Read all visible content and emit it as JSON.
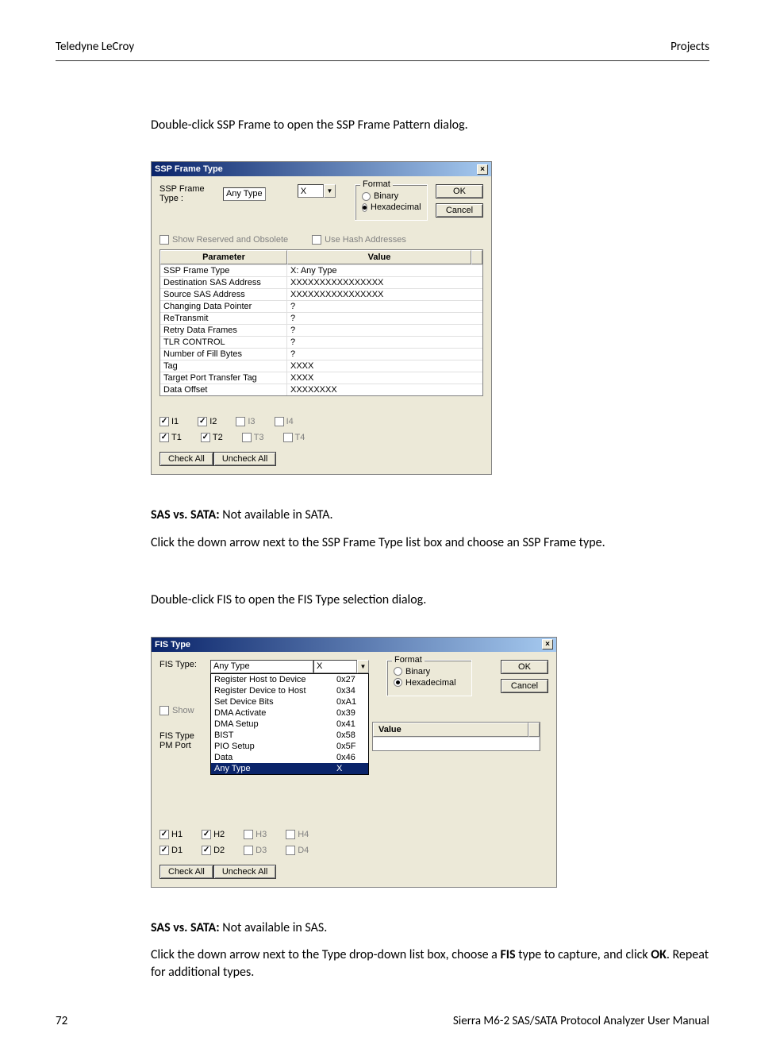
{
  "header": {
    "left": "Teledyne LeCroy",
    "right": "Projects"
  },
  "intro1": "Double-click SSP Frame to open the SSP Frame Pattern dialog.",
  "ssp": {
    "title": "SSP Frame Type",
    "type_label": "SSP Frame Type :",
    "type_value": "Any Type",
    "x_value": "X",
    "format_legend": "Format",
    "radio_binary": "Binary",
    "radio_hex": "Hexadecimal",
    "ok": "OK",
    "cancel": "Cancel",
    "show_reserved": "Show Reserved and Obsolete",
    "use_hash": "Use Hash Addresses",
    "col_param": "Parameter",
    "col_value": "Value",
    "rows": [
      {
        "p": "SSP Frame Type",
        "v": "X: Any Type"
      },
      {
        "p": "Destination SAS Address",
        "v": "XXXXXXXXXXXXXXXX"
      },
      {
        "p": "Source SAS Address",
        "v": "XXXXXXXXXXXXXXXX"
      },
      {
        "p": "Changing Data Pointer",
        "v": "?"
      },
      {
        "p": "ReTransmit",
        "v": "?"
      },
      {
        "p": "Retry Data Frames",
        "v": "?"
      },
      {
        "p": "TLR CONTROL",
        "v": "?"
      },
      {
        "p": "Number of Fill Bytes",
        "v": "?"
      },
      {
        "p": "Tag",
        "v": "XXXX"
      },
      {
        "p": "Target Port Transfer Tag",
        "v": "XXXX"
      },
      {
        "p": "Data Offset",
        "v": "XXXXXXXX"
      }
    ],
    "checks_row1": [
      "I1",
      "I2",
      "I3",
      "I4"
    ],
    "checks_row2": [
      "T1",
      "T2",
      "T3",
      "T4"
    ],
    "check_all": "Check All",
    "uncheck_all": "Uncheck All"
  },
  "sas_sata_1_label": "SAS vs. SATA:",
  "sas_sata_1_text": " Not available in SATA.",
  "instr1": "Click the down arrow next to the SSP Frame Type list box and choose an SSP Frame type.",
  "intro2": "Double-click FIS to open the FIS Type selection dialog.",
  "fis": {
    "title": "FIS Type",
    "type_label": "FIS Type:",
    "type_value": "Any Type",
    "x_value": "X",
    "format_legend": "Format",
    "radio_binary": "Binary",
    "radio_hex": "Hexadecimal",
    "ok": "OK",
    "cancel": "Cancel",
    "show_label": "Show",
    "side_label1": "FIS Type",
    "side_label2": "PM Port",
    "value_label": "Value",
    "options": [
      {
        "n": "Register Host to Device",
        "c": "0x27"
      },
      {
        "n": "Register Device to Host",
        "c": "0x34"
      },
      {
        "n": "Set Device Bits",
        "c": "0xA1"
      },
      {
        "n": "DMA Activate",
        "c": "0x39"
      },
      {
        "n": "DMA Setup",
        "c": "0x41"
      },
      {
        "n": "BIST",
        "c": "0x58"
      },
      {
        "n": "PIO Setup",
        "c": "0x5F"
      },
      {
        "n": "Data",
        "c": "0x46"
      },
      {
        "n": "Any Type",
        "c": "X"
      }
    ],
    "checks_row1": [
      "H1",
      "H2",
      "H3",
      "H4"
    ],
    "checks_row2": [
      "D1",
      "D2",
      "D3",
      "D4"
    ],
    "check_all": "Check All",
    "uncheck_all": "Uncheck All"
  },
  "sas_sata_2_label": "SAS vs. SATA:",
  "sas_sata_2_text": " Not available in SAS.",
  "instr2a": "Click the down arrow next to the Type drop-down list box, choose a ",
  "instr2_bold": "FIS",
  "instr2b": " type to capture, and click ",
  "instr2_bold2": "OK",
  "instr2c": ". Repeat for additional types.",
  "footer": {
    "page": "72",
    "manual": "Sierra M6-2 SAS/SATA Protocol Analyzer User Manual"
  }
}
